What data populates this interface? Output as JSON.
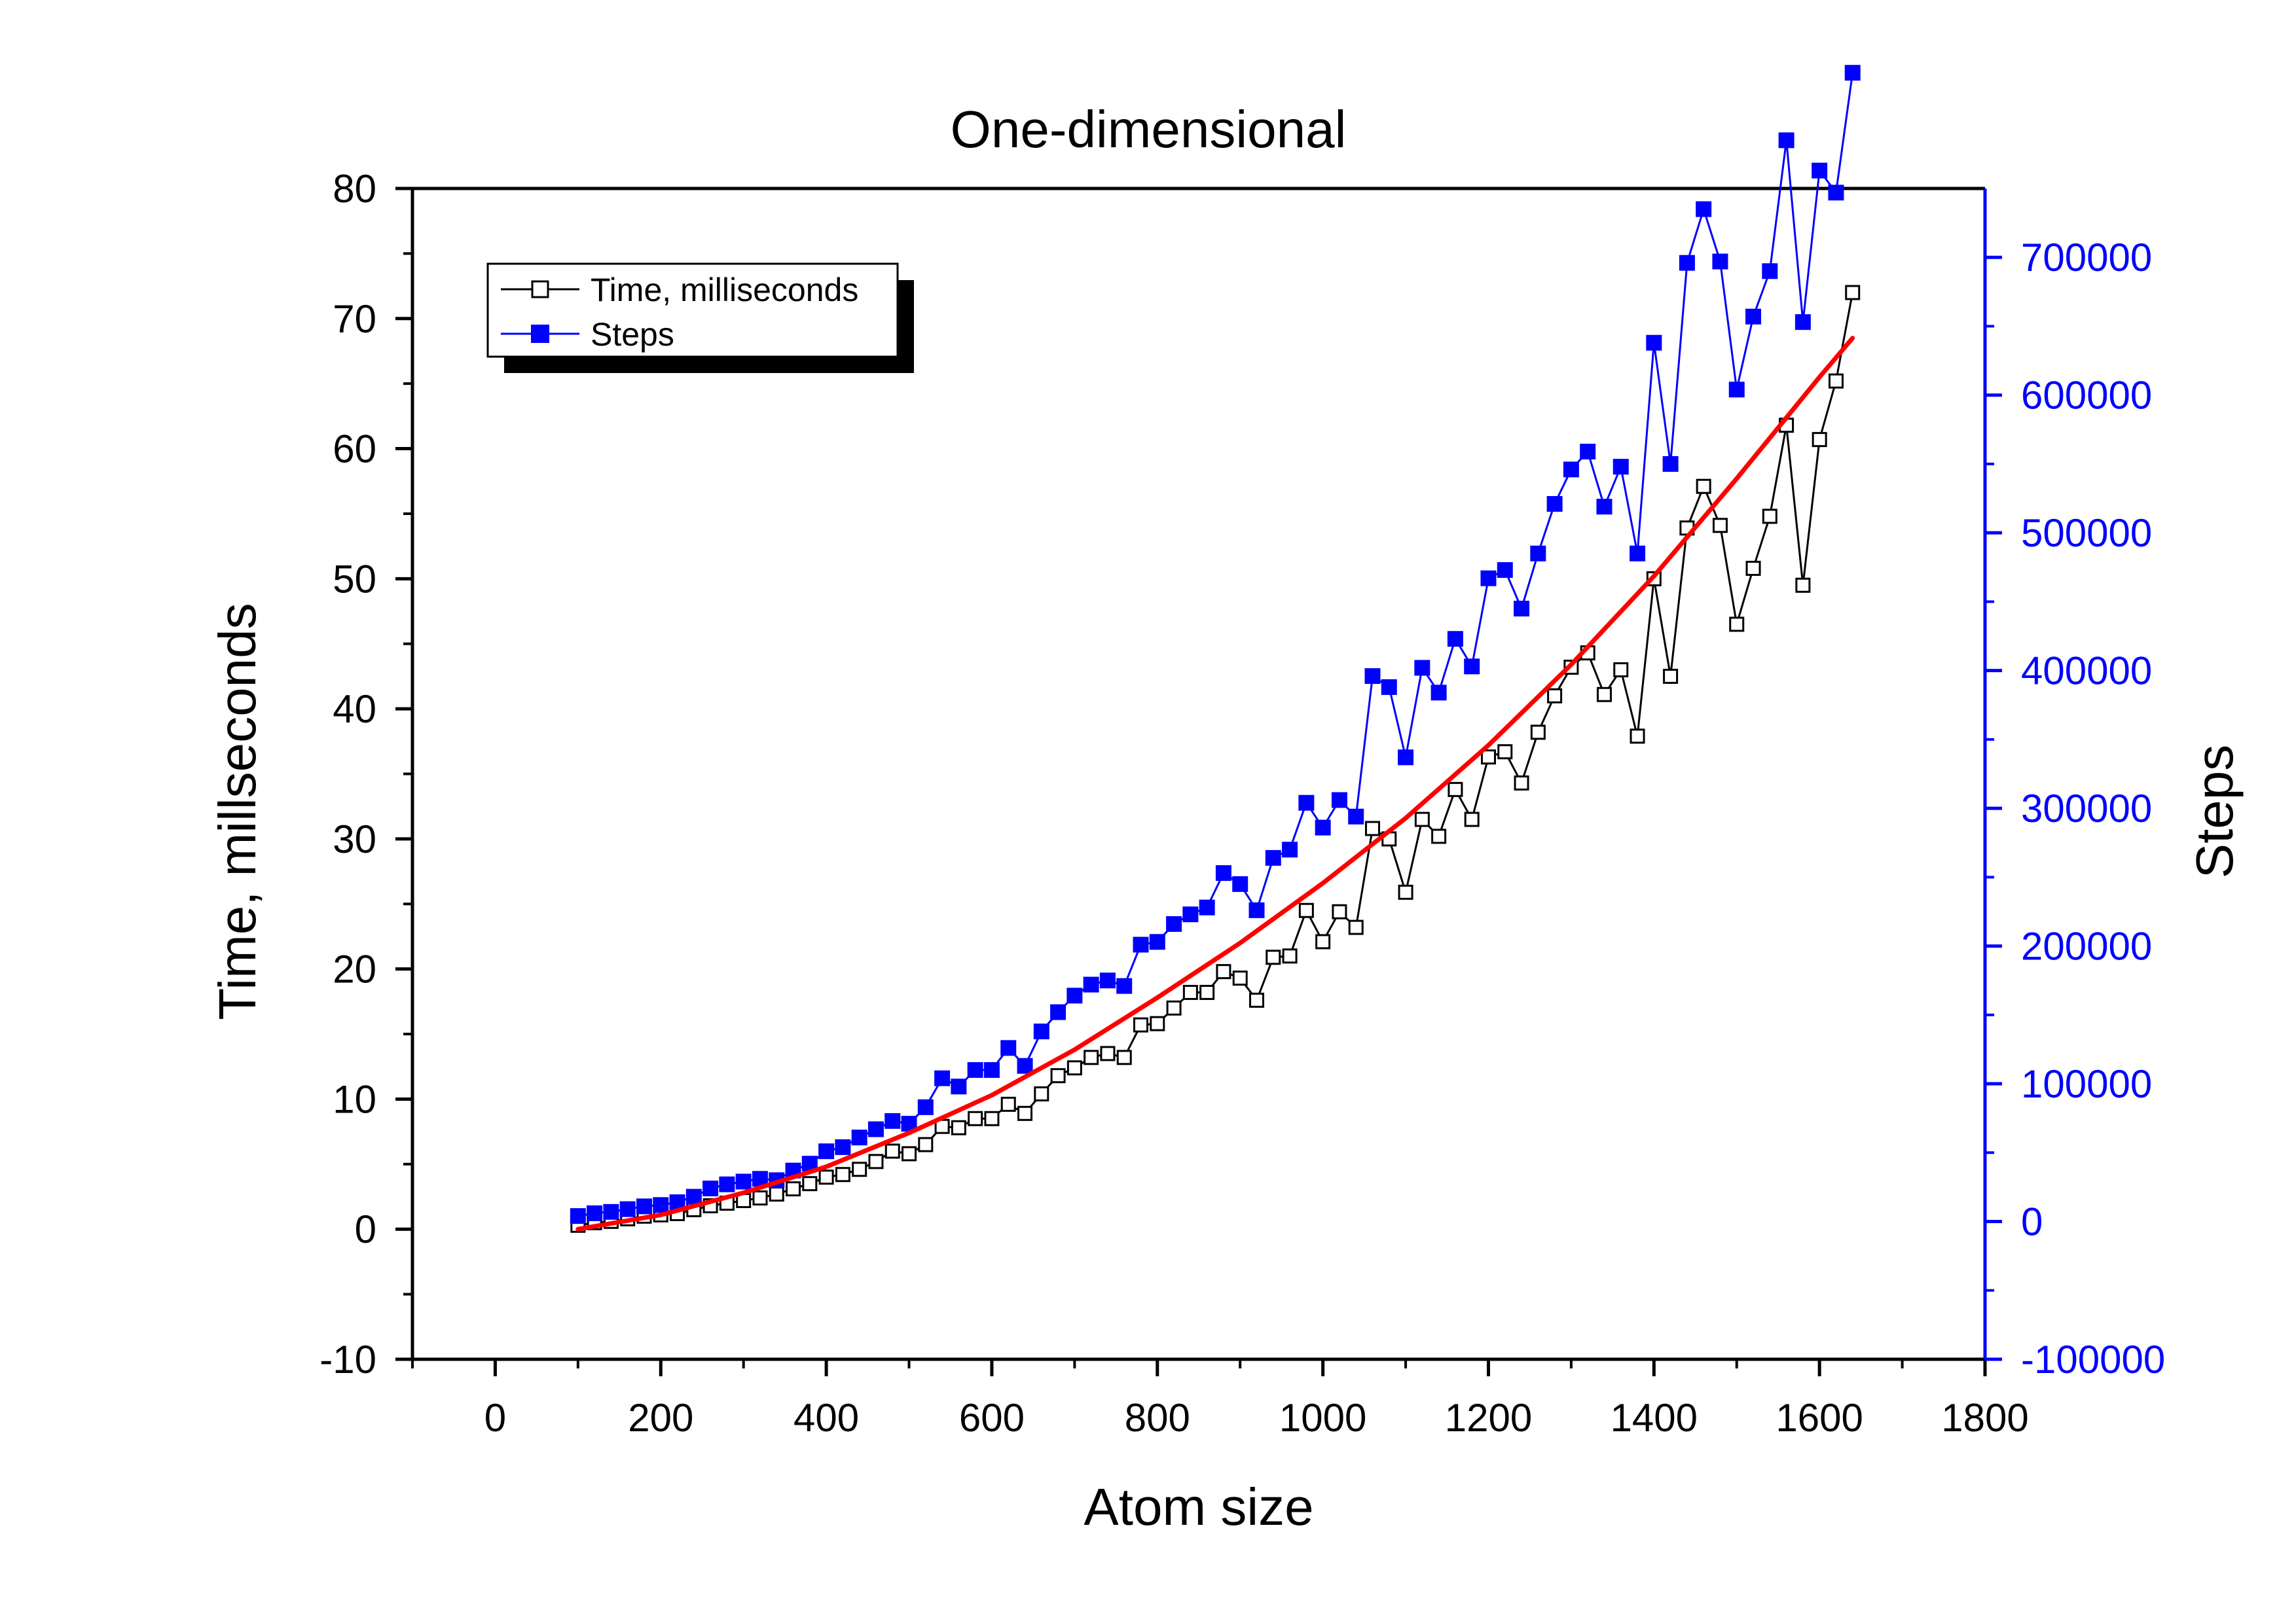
{
  "chart_data": {
    "type": "line",
    "title": "One-dimensional",
    "xlabel": "Atom size",
    "ylabel": "Time, millseconds",
    "y2label": "Steps",
    "xlim": [
      -100,
      1800
    ],
    "ylim": [
      -10,
      80
    ],
    "y2lim": [
      -100000,
      750000
    ],
    "x_ticks": [
      0,
      200,
      400,
      600,
      800,
      1000,
      1200,
      1400,
      1600,
      1800
    ],
    "y_ticks": [
      -10,
      0,
      10,
      20,
      30,
      40,
      50,
      60,
      70,
      80
    ],
    "y2_ticks": [
      -100000,
      0,
      100000,
      200000,
      300000,
      400000,
      500000,
      600000,
      700000
    ],
    "grid": false,
    "legend_position": "top-left",
    "colors": {
      "time": "#000000",
      "steps": "#0000ff",
      "fit": "#ff0000"
    },
    "x": [
      100,
      120,
      140,
      160,
      180,
      200,
      220,
      240,
      260,
      280,
      300,
      320,
      340,
      360,
      380,
      400,
      420,
      440,
      460,
      480,
      500,
      520,
      540,
      560,
      580,
      600,
      620,
      640,
      660,
      680,
      700,
      720,
      740,
      760,
      780,
      800,
      820,
      840,
      860,
      880,
      900,
      920,
      940,
      960,
      980,
      1000,
      1020,
      1040,
      1060,
      1080,
      1100,
      1120,
      1140,
      1160,
      1180,
      1200,
      1220,
      1240,
      1260,
      1280,
      1300,
      1320,
      1340,
      1360,
      1380,
      1400,
      1420,
      1440,
      1460,
      1480,
      1500,
      1520,
      1540,
      1560,
      1580,
      1600,
      1620,
      1640
    ],
    "series": [
      {
        "name": "Time, milliseconds",
        "axis": "left",
        "marker": "open-square",
        "values": [
          0.3,
          0.5,
          0.6,
          0.8,
          1.0,
          1.1,
          1.2,
          1.5,
          1.8,
          2.0,
          2.2,
          2.4,
          2.7,
          3.1,
          3.5,
          4.0,
          4.2,
          4.6,
          5.2,
          6.0,
          5.8,
          6.5,
          7.9,
          7.8,
          8.5,
          8.5,
          9.6,
          8.9,
          10.4,
          11.8,
          12.4,
          13.2,
          13.5,
          13.2,
          15.7,
          15.8,
          17.0,
          18.2,
          18.2,
          19.8,
          19.3,
          17.6,
          20.9,
          21.0,
          24.5,
          22.1,
          24.4,
          23.2,
          30.8,
          30.0,
          25.9,
          31.5,
          30.2,
          33.8,
          31.5,
          36.3,
          36.7,
          34.3,
          38.2,
          41.0,
          43.2,
          44.3,
          41.1,
          43.0,
          37.9,
          50.0,
          42.5,
          53.9,
          57.1,
          54.1,
          46.5,
          50.8,
          54.8,
          61.8,
          49.5,
          60.7,
          65.2,
          72.0
        ]
      },
      {
        "name": "Steps",
        "axis": "right",
        "marker": "filled-square",
        "values": [
          4000,
          6000,
          7000,
          9000,
          11000,
          12000,
          14000,
          18000,
          24000,
          27000,
          29000,
          31000,
          30000,
          37000,
          42000,
          51000,
          54000,
          61000,
          67000,
          73000,
          71000,
          83000,
          104000,
          98000,
          110000,
          110000,
          126000,
          113000,
          138000,
          152000,
          164000,
          172000,
          175000,
          171000,
          201000,
          203000,
          216000,
          223000,
          228000,
          253000,
          245000,
          226000,
          264000,
          270000,
          304000,
          286000,
          306000,
          294000,
          396000,
          388000,
          337000,
          402000,
          384000,
          423000,
          403000,
          467000,
          473000,
          445000,
          485000,
          521000,
          546000,
          559000,
          519000,
          548000,
          485000,
          638000,
          550000,
          696000,
          735000,
          697000,
          604000,
          657000,
          690000,
          785000,
          653000,
          763000,
          747000,
          834000
        ]
      },
      {
        "name": "",
        "axis": "left",
        "marker": "none",
        "style": "fit",
        "x": [
          100,
          200,
          300,
          400,
          500,
          600,
          700,
          800,
          900,
          1000,
          1100,
          1200,
          1300,
          1400,
          1500,
          1600,
          1640
        ],
        "values": [
          0.0,
          1.1,
          2.8,
          4.8,
          7.4,
          10.3,
          13.8,
          17.8,
          22.0,
          26.6,
          31.6,
          37.2,
          43.4,
          50.2,
          57.7,
          65.5,
          68.5
        ]
      }
    ]
  },
  "legend": {
    "items": [
      {
        "label": "Time, milliseconds"
      },
      {
        "label": "Steps"
      }
    ]
  }
}
